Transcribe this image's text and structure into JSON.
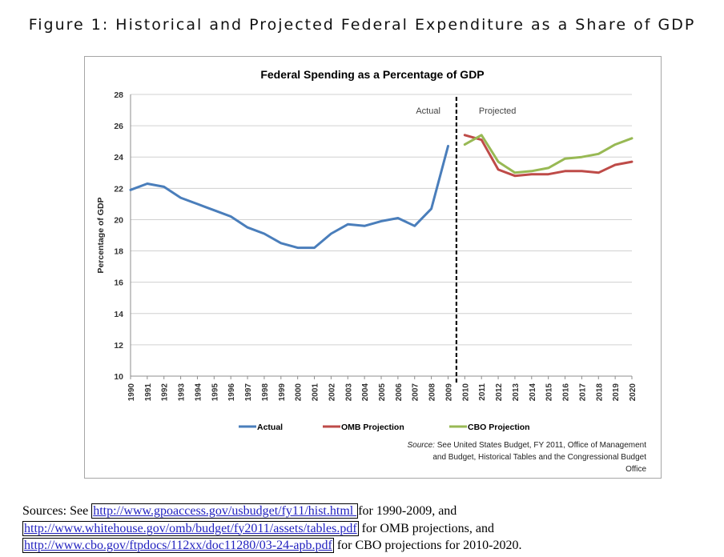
{
  "figure_title": "Figure 1: Historical and Projected Federal Expenditure as a Share of GDP",
  "chart_data": {
    "type": "line",
    "title": "Federal Spending as a Percentage of GDP",
    "xlabel": "",
    "ylabel": "Percentage of GDP",
    "ylim": [
      10,
      28
    ],
    "yticks": [
      10,
      12,
      14,
      16,
      18,
      20,
      22,
      24,
      26,
      28
    ],
    "xlim": [
      1990,
      2020
    ],
    "xticks": [
      "1990",
      "1991",
      "1992",
      "1993",
      "1994",
      "1995",
      "1996",
      "1997",
      "1998",
      "1999",
      "2000",
      "2001",
      "2002",
      "2003",
      "2004",
      "2005",
      "2006",
      "2007",
      "2008",
      "2009",
      "2010",
      "2011",
      "2012",
      "2013",
      "2014",
      "2015",
      "2016",
      "2017",
      "2018",
      "2019",
      "2020"
    ],
    "grid": true,
    "legend": "bottom",
    "divider": {
      "x": 2009.5,
      "left_label": "Actual",
      "right_label": "Projected"
    },
    "series": [
      {
        "name": "Actual",
        "color": "#4a7ebb",
        "x": [
          1990,
          1991,
          1992,
          1993,
          1994,
          1995,
          1996,
          1997,
          1998,
          1999,
          2000,
          2001,
          2002,
          2003,
          2004,
          2005,
          2006,
          2007,
          2008,
          2009
        ],
        "y": [
          21.9,
          22.3,
          22.1,
          21.4,
          21.0,
          20.6,
          20.2,
          19.5,
          19.1,
          18.5,
          18.2,
          18.2,
          19.1,
          19.7,
          19.6,
          19.9,
          20.1,
          19.6,
          20.7,
          24.7
        ]
      },
      {
        "name": "OMB Projection",
        "color": "#be4b48",
        "x": [
          2010,
          2011,
          2012,
          2013,
          2014,
          2015,
          2016,
          2017,
          2018,
          2019,
          2020
        ],
        "y": [
          25.4,
          25.1,
          23.2,
          22.8,
          22.9,
          22.9,
          23.1,
          23.1,
          23.0,
          23.5,
          23.7
        ]
      },
      {
        "name": "CBO Projection",
        "color": "#98b954",
        "x": [
          2010,
          2011,
          2012,
          2013,
          2014,
          2015,
          2016,
          2017,
          2018,
          2019,
          2020
        ],
        "y": [
          24.8,
          25.4,
          23.7,
          23.0,
          23.1,
          23.3,
          23.9,
          24.0,
          24.2,
          24.8,
          25.2
        ]
      }
    ],
    "source_note": {
      "label": "Source:",
      "lines": [
        " See United States Budget, FY 2011, Office of Management",
        "and Budget, Historical Tables and  the Congressional Budget",
        "Office"
      ]
    }
  },
  "sources": {
    "lead": "Sources: See ",
    "link1": "http://www.gpoaccess.gov/usbudget/fy11/hist.html ",
    "text1": "for 1990-2009,",
    "text1b": " and",
    "link2": "http://www.whitehouse.gov/omb/budget/fy2011/assets/tables.pdf",
    "text2": " for OMB projections, and",
    "link3": "http://www.cbo.gov/ftpdocs/112xx/doc11280/03-24-apb.pdf",
    "text3": " for CBO projections for 2010-2020."
  }
}
